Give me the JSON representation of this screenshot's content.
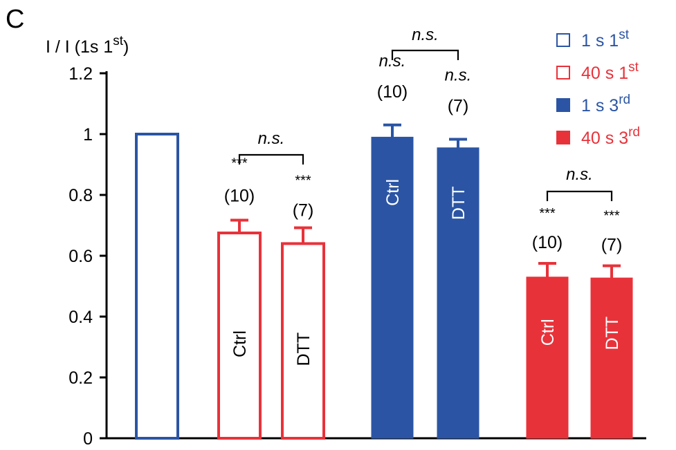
{
  "panel_label": "C",
  "chart_data": {
    "type": "bar",
    "ylabel": {
      "main": "I / I (1s 1",
      "sup": "st",
      "close": ")"
    },
    "ylim": [
      0,
      1.2
    ],
    "yticks": [
      "0",
      "0.2",
      "0.4",
      "0.6",
      "0.8",
      "1",
      "1.2"
    ],
    "colors": {
      "blue": "#2b55a4",
      "red": "#e8323a",
      "black": "#000000"
    },
    "series": [
      {
        "name": "1 s 1st",
        "label": "1 s 1",
        "sup": "st",
        "style": "open-blue"
      },
      {
        "name": "40 s 1st",
        "label": "40 s 1",
        "sup": "st",
        "style": "open-red"
      },
      {
        "name": "1 s 3rd",
        "label": "1 s 3",
        "sup": "rd",
        "style": "filled-blue"
      },
      {
        "name": "40 s 3rd",
        "label": "40 s 3",
        "sup": "rd",
        "style": "filled-red"
      }
    ],
    "bars": [
      {
        "group": "1 s 1st",
        "category": "",
        "value": 1.0,
        "error": 0,
        "stars": "",
        "n": ""
      },
      {
        "group": "40 s 1st",
        "category": "Ctrl",
        "value": 0.675,
        "error": 0.042,
        "stars": "***",
        "n": "(10)"
      },
      {
        "group": "40 s 1st",
        "category": "DTT",
        "value": 0.64,
        "error": 0.052,
        "stars": "***",
        "n": "(7)"
      },
      {
        "group": "1 s 3rd",
        "category": "Ctrl",
        "value": 0.99,
        "error": 0.04,
        "stars": "n.s.",
        "n": "(10)"
      },
      {
        "group": "1 s 3rd",
        "category": "DTT",
        "value": 0.955,
        "error": 0.028,
        "stars": "n.s.",
        "n": "(7)"
      },
      {
        "group": "40 s 3rd",
        "category": "Ctrl",
        "value": 0.53,
        "error": 0.045,
        "stars": "***",
        "n": "(10)"
      },
      {
        "group": "40 s 3rd",
        "category": "DTT",
        "value": 0.527,
        "error": 0.04,
        "stars": "***",
        "n": "(7)"
      }
    ],
    "comparisons": [
      {
        "between": [
          "40 s 1st Ctrl",
          "40 s 1st DTT"
        ],
        "label": "n.s."
      },
      {
        "between": [
          "1 s 3rd Ctrl",
          "1 s 3rd DTT"
        ],
        "label": "n.s."
      },
      {
        "between": [
          "40 s 3rd Ctrl",
          "40 s 3rd DTT"
        ],
        "label": "n.s."
      }
    ],
    "legend_position": "top-right",
    "grid": false
  }
}
